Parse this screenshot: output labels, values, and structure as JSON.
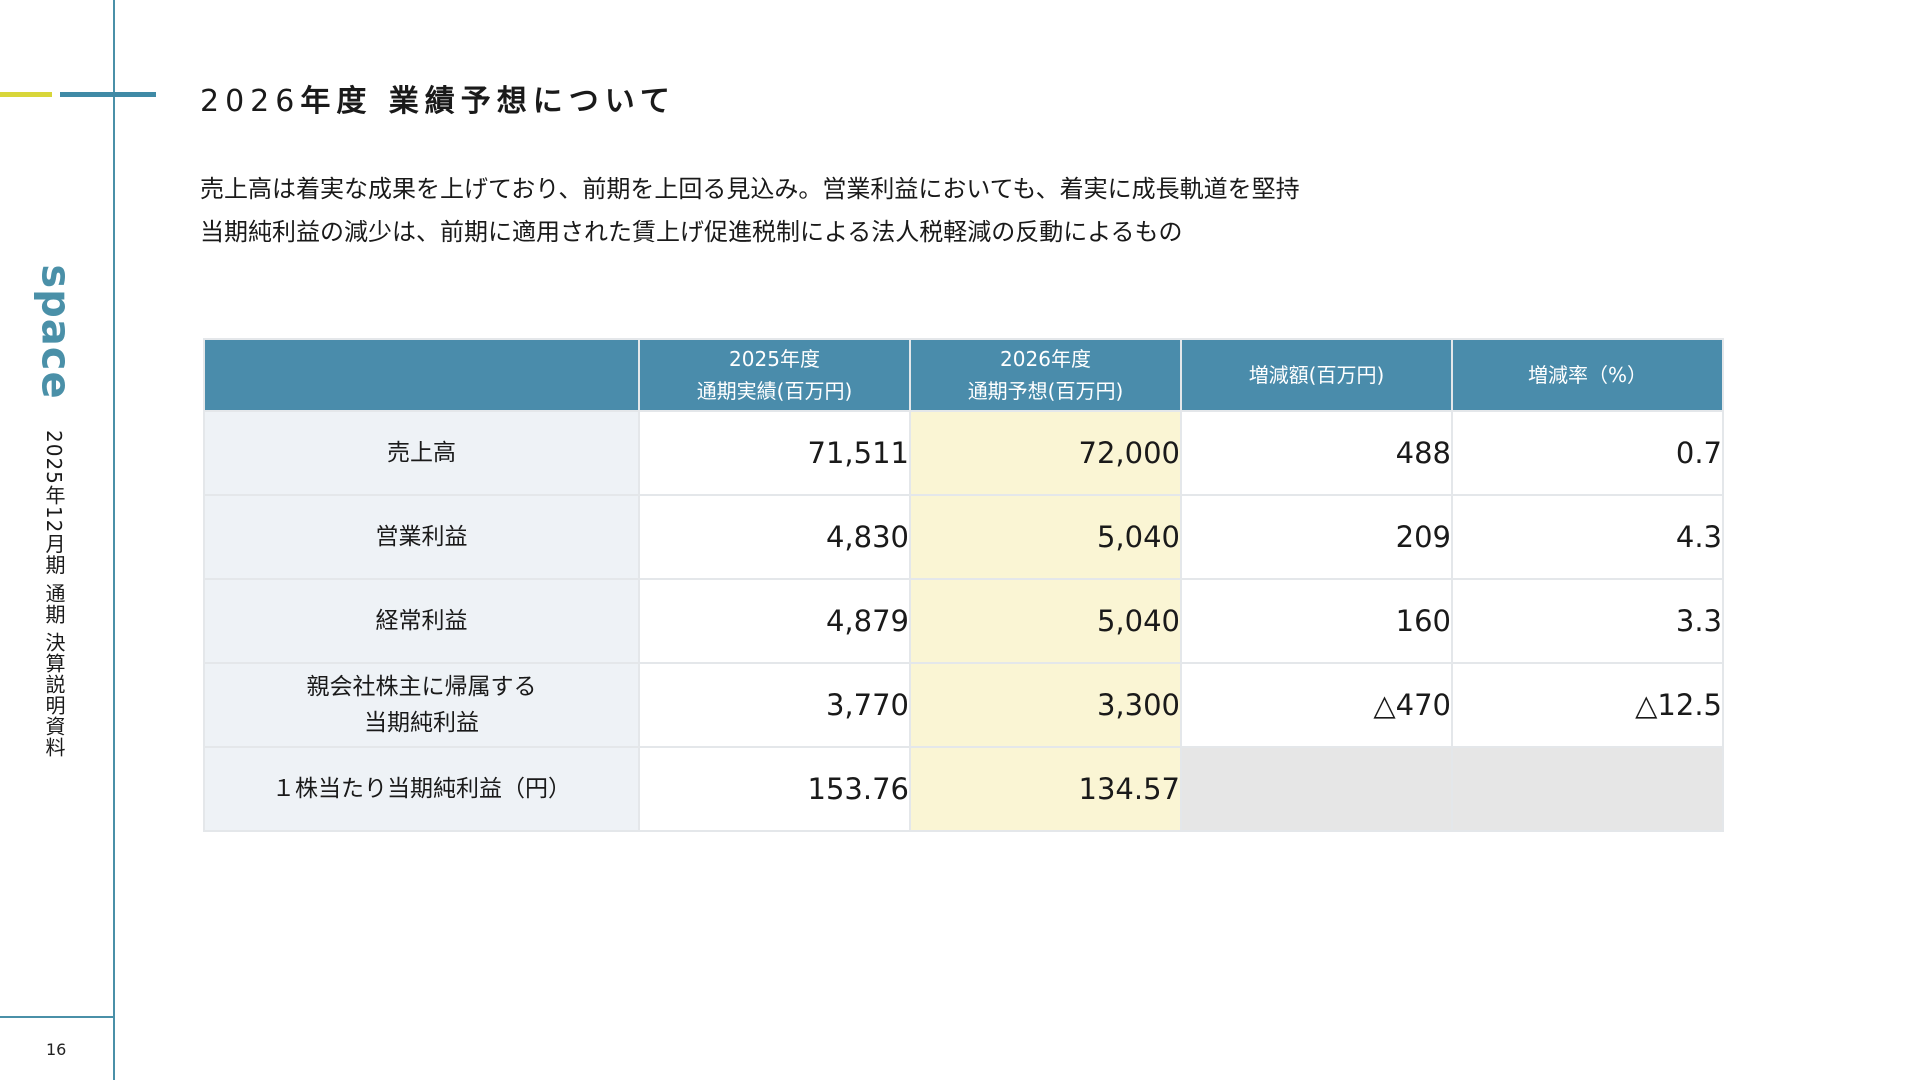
{
  "sidebar": {
    "logo_text": "space",
    "document_title": "2025年12月期 通期 決算説明資料",
    "page_number": "16",
    "colors": {
      "accent_yellow": "#d8d63a",
      "accent_blue": "#3f8aa6",
      "line": "#4a90a8"
    }
  },
  "heading": {
    "year": "2026",
    "title_rest": "年度 業績予想について"
  },
  "summary": {
    "line1": "売上高は着実な成果を上げており、前期を上回る見込み。営業利益においても、着実に成長軌道を堅持",
    "line2": "当期純利益の減少は、前期に適用された賃上げ促進税制による法人税軽減の反動によるもの"
  },
  "table": {
    "header_color": "#4a8cab",
    "forecast_color": "#faf5d4",
    "headers": [
      {
        "line1": "",
        "line2": ""
      },
      {
        "line1": "2025年度",
        "line2": "通期実績(百万円)"
      },
      {
        "line1": "2026年度",
        "line2": "通期予想(百万円)"
      },
      {
        "line1": "増減額(百万円)",
        "line2": ""
      },
      {
        "line1": "増減率（%）",
        "line2": ""
      }
    ],
    "rows": [
      {
        "label1": "売上高",
        "label2": "",
        "actual": "71,511",
        "forecast": "72,000",
        "change": "488",
        "rate": "0.7"
      },
      {
        "label1": "営業利益",
        "label2": "",
        "actual": "4,830",
        "forecast": "5,040",
        "change": "209",
        "rate": "4.3"
      },
      {
        "label1": "経常利益",
        "label2": "",
        "actual": "4,879",
        "forecast": "5,040",
        "change": "160",
        "rate": "3.3"
      },
      {
        "label1": "親会社株主に帰属する",
        "label2": "当期純利益",
        "actual": "3,770",
        "forecast": "3,300",
        "change": "△470",
        "rate": "△12.5"
      },
      {
        "label1": "１株当たり当期純利益（円）",
        "label2": "",
        "actual": "153.76",
        "forecast": "134.57",
        "change": "",
        "rate": ""
      }
    ]
  }
}
